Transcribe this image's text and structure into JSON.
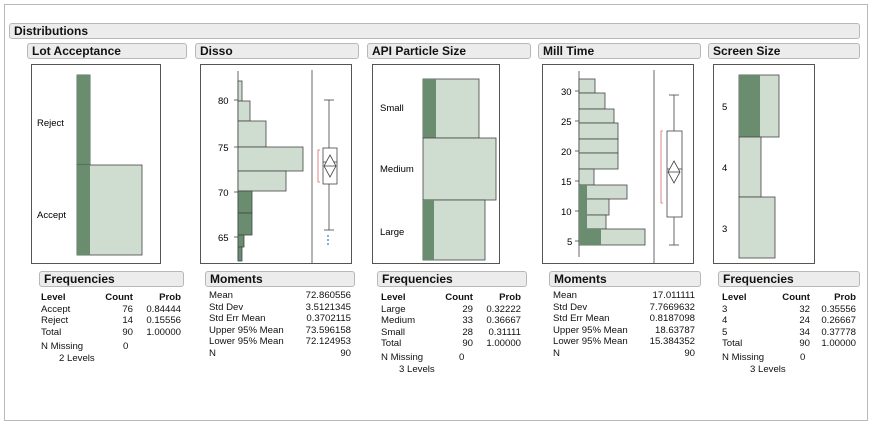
{
  "title": "Distributions",
  "colors": {
    "fill": "#cfdcd0",
    "dark": "#6a8c6f",
    "stroke": "#444444",
    "red": "#d46a6a",
    "blue": "#2f6fd6"
  },
  "panels": {
    "lot": {
      "title": "Lot Acceptance",
      "labels": [
        "Reject",
        "Accept"
      ],
      "subtitle": "Frequencies",
      "headers": [
        "Level",
        "Count",
        "Prob"
      ],
      "rows": [
        [
          "Accept",
          "76",
          "0.84444"
        ],
        [
          "Reject",
          "14",
          "0.15556"
        ],
        [
          "Total",
          "90",
          "1.00000"
        ]
      ],
      "missing_label": "N Missing",
      "missing_value": "0",
      "levels": "2 Levels"
    },
    "disso": {
      "title": "Disso",
      "ticks": [
        "80",
        "75",
        "70",
        "65"
      ],
      "subtitle": "Moments",
      "rows": [
        [
          "Mean",
          "72.860556"
        ],
        [
          "Std Dev",
          "3.5121345"
        ],
        [
          "Std Err Mean",
          "0.3702115"
        ],
        [
          "Upper 95% Mean",
          "73.596158"
        ],
        [
          "Lower 95% Mean",
          "72.124953"
        ],
        [
          "N",
          "90"
        ]
      ]
    },
    "api": {
      "title": "API Particle Size",
      "labels": [
        "Small",
        "Medium",
        "Large"
      ],
      "subtitle": "Frequencies",
      "headers": [
        "Level",
        "Count",
        "Prob"
      ],
      "rows": [
        [
          "Large",
          "29",
          "0.32222"
        ],
        [
          "Medium",
          "33",
          "0.36667"
        ],
        [
          "Small",
          "28",
          "0.31111"
        ],
        [
          "Total",
          "90",
          "1.00000"
        ]
      ],
      "missing_label": "N Missing",
      "missing_value": "0",
      "levels": "3 Levels"
    },
    "mill": {
      "title": "Mill Time",
      "ticks": [
        "30",
        "25",
        "20",
        "15",
        "10",
        "5"
      ],
      "subtitle": "Moments",
      "rows": [
        [
          "Mean",
          "17.011111"
        ],
        [
          "Std Dev",
          "7.7669632"
        ],
        [
          "Std Err Mean",
          "0.8187098"
        ],
        [
          "Upper 95% Mean",
          "18.63787"
        ],
        [
          "Lower 95% Mean",
          "15.384352"
        ],
        [
          "N",
          "90"
        ]
      ]
    },
    "screen": {
      "title": "Screen Size",
      "labels": [
        "5",
        "4",
        "3"
      ],
      "subtitle": "Frequencies",
      "headers": [
        "Level",
        "Count",
        "Prob"
      ],
      "rows": [
        [
          "3",
          "32",
          "0.35556"
        ],
        [
          "4",
          "24",
          "0.26667"
        ],
        [
          "5",
          "34",
          "0.37778"
        ],
        [
          "Total",
          "90",
          "1.00000"
        ]
      ],
      "missing_label": "N Missing",
      "missing_value": "0",
      "levels": "3 Levels"
    }
  }
}
